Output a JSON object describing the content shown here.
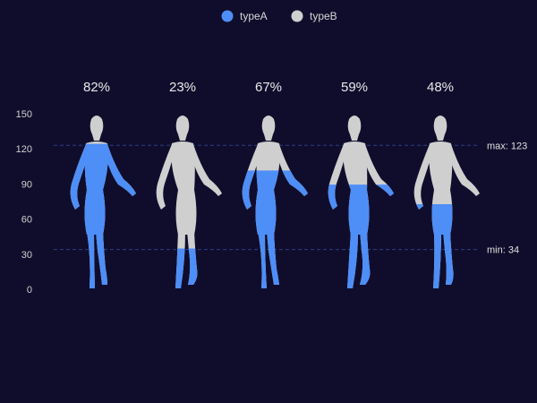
{
  "chart_data": {
    "type": "bar",
    "categories": [
      "",
      "",
      "",
      "",
      ""
    ],
    "series": [
      {
        "name": "typeA",
        "values": [
          82,
          23,
          67,
          59,
          48
        ]
      },
      {
        "name": "typeB",
        "values": [
          18,
          77,
          33,
          41,
          52
        ]
      }
    ],
    "percent_labels": [
      "82%",
      "23%",
      "67%",
      "59%",
      "48%"
    ],
    "y_ticks": [
      0,
      30,
      60,
      90,
      120,
      150
    ],
    "ylim": [
      0,
      150
    ],
    "mark_lines": [
      {
        "label": "max: 123",
        "value": 123
      },
      {
        "label": "min: 34",
        "value": 34
      }
    ],
    "legend_position": "top-center",
    "grid": false,
    "colors": {
      "typeA": "#4e8ef7",
      "typeB": "#cfcfcf",
      "background": "#100d2c",
      "markline": "#2c3f86"
    }
  }
}
